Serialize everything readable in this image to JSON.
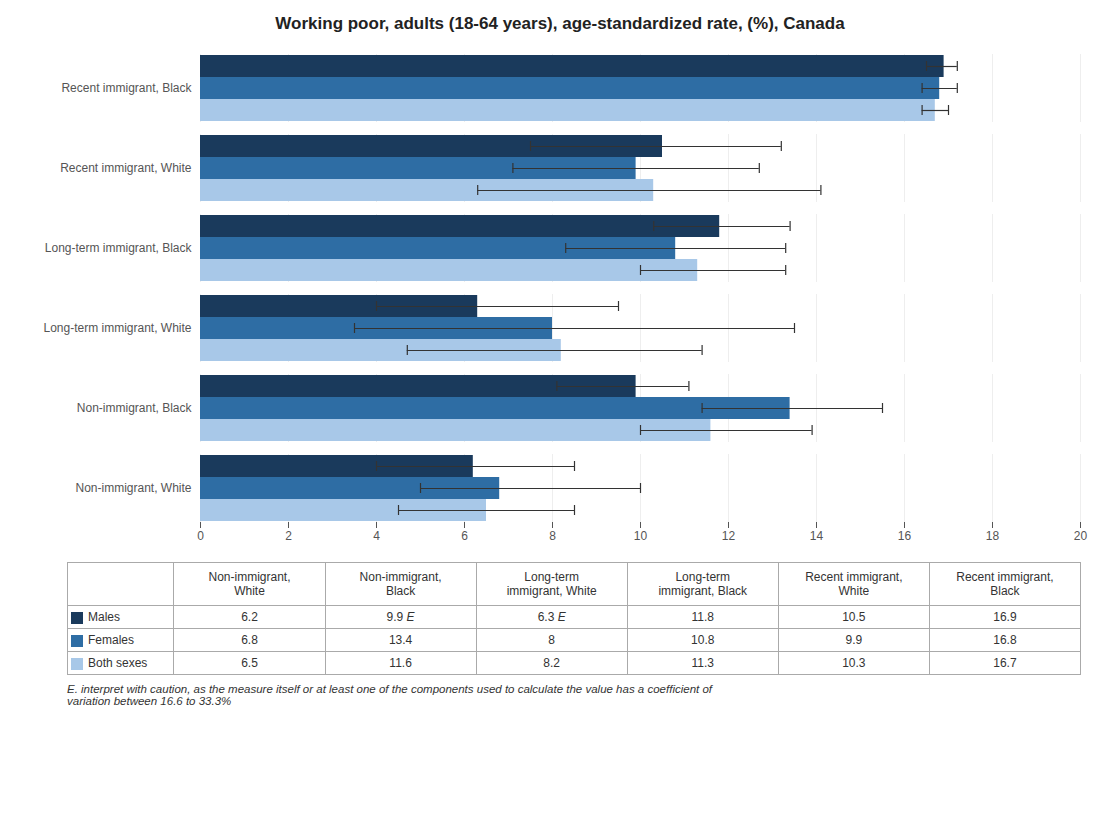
{
  "chart_data": {
    "type": "bar",
    "orientation": "horizontal",
    "title": "Working poor, adults (18-64 years), age-standardized rate, (%), Canada",
    "categories": [
      "Non-immigrant, White",
      "Non-immigrant, Black",
      "Long-term immigrant, White",
      "Long-term immigrant, Black",
      "Recent immigrant, White",
      "Recent immigrant, Black"
    ],
    "series": [
      {
        "name": "Males",
        "color": "#1a3a5c",
        "values": [
          6.2,
          9.9,
          6.3,
          11.8,
          10.5,
          16.9
        ],
        "error_bars": [
          [
            2.2,
            2.3
          ],
          [
            1.8,
            1.2
          ],
          [
            2.3,
            3.2
          ],
          [
            1.5,
            1.6
          ],
          [
            3.0,
            2.7
          ],
          [
            0.4,
            0.3
          ]
        ]
      },
      {
        "name": "Females",
        "color": "#2e6da4",
        "values": [
          6.8,
          13.4,
          8.0,
          10.8,
          9.9,
          16.8
        ],
        "error_bars": [
          [
            1.8,
            3.2
          ],
          [
            2.0,
            2.1
          ],
          [
            4.5,
            5.5
          ],
          [
            2.5,
            2.5
          ],
          [
            2.8,
            2.8
          ],
          [
            0.4,
            0.4
          ]
        ]
      },
      {
        "name": "Both sexes",
        "color": "#a8c8e8",
        "values": [
          6.5,
          11.6,
          8.2,
          11.3,
          10.3,
          16.7
        ],
        "error_bars": [
          [
            2.0,
            2.0
          ],
          [
            1.6,
            2.3
          ],
          [
            3.5,
            3.2
          ],
          [
            1.3,
            2.0
          ],
          [
            4.0,
            3.8
          ],
          [
            0.3,
            0.3
          ]
        ]
      }
    ],
    "xlim": [
      0,
      20
    ],
    "xticks": [
      0,
      2,
      4,
      6,
      8,
      10,
      12,
      14,
      16,
      18,
      20
    ],
    "grid": true,
    "table": {
      "columns": [
        "Non-immigrant,\nWhite",
        "Non-immigrant,\nBlack",
        "Long-term\nimmigrant, White",
        "Long-term\nimmigrant, Black",
        "Recent immigrant,\nWhite",
        "Recent immigrant,\nBlack"
      ],
      "rows": [
        [
          "6.2",
          "9.9 E",
          "6.3 E",
          "11.8",
          "10.5",
          "16.9"
        ],
        [
          "6.8",
          "13.4",
          "8",
          "10.8",
          "9.9",
          "16.8"
        ],
        [
          "6.5",
          "11.6",
          "8.2",
          "11.3",
          "10.3",
          "16.7"
        ]
      ]
    },
    "footnote": "E. interpret with caution, as the measure itself or at least one of the components used to calculate the value has a coefficient of\nvariation between 16.6 to 33.3%"
  }
}
